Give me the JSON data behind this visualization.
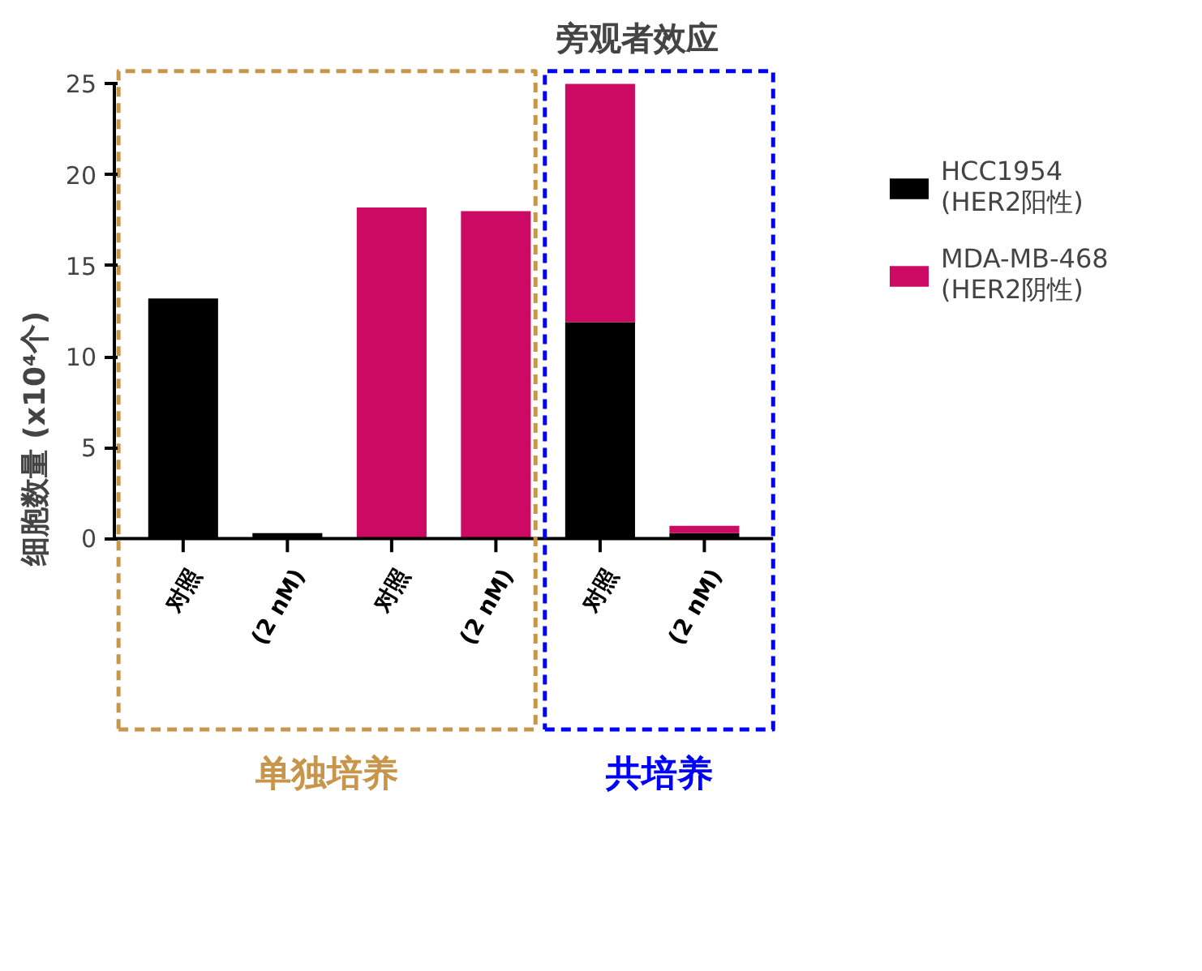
{
  "chart_data": {
    "type": "bar",
    "stacked": true,
    "title": "旁观者效应",
    "ylabel": "细胞数量 (x10⁴个)",
    "categories": [
      "对照",
      "(2 nM)",
      "对照",
      "(2 nM)",
      "对照",
      "(2 nM)"
    ],
    "series": [
      {
        "name": "HCC1954\n(HER2阳性)",
        "color": "#000000",
        "values": [
          13.2,
          0.3,
          0,
          0,
          11.9,
          0.3
        ]
      },
      {
        "name": "MDA-MB-468\n(HER2阴性)",
        "color": "#cc0a64",
        "values": [
          0,
          0,
          18.2,
          18.0,
          13.1,
          0.4
        ]
      }
    ],
    "ylim": [
      0,
      25
    ],
    "yticks": [
      0,
      5,
      10,
      15,
      20,
      25
    ],
    "grid": false,
    "legend": "right",
    "annotations": [
      "单独培养",
      "共培养"
    ]
  }
}
